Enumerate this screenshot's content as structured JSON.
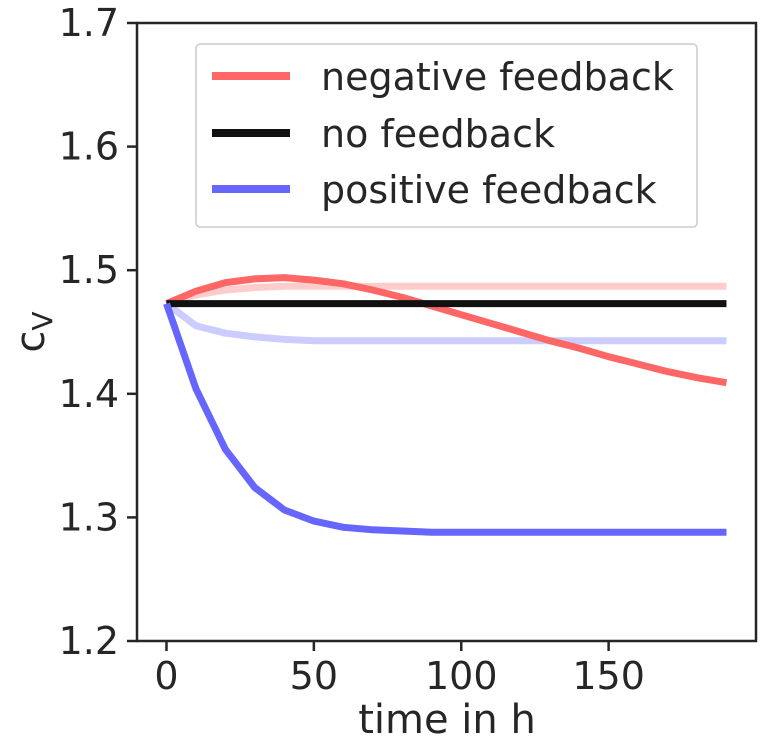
{
  "chart_data": {
    "type": "line",
    "title": "",
    "xlabel": "time in h",
    "ylabel_main": "c",
    "ylabel_sub": "V",
    "xlim": [
      -10,
      200
    ],
    "ylim": [
      1.2,
      1.7
    ],
    "xticks": [
      0,
      50,
      100,
      150
    ],
    "yticks": [
      1.2,
      1.3,
      1.4,
      1.5,
      1.6,
      1.7
    ],
    "xtick_labels": [
      "0",
      "50",
      "100",
      "150"
    ],
    "ytick_labels": [
      "1.2",
      "1.3",
      "1.4",
      "1.5",
      "1.6",
      "1.7"
    ],
    "grid": false,
    "legend_position": "top-right",
    "legend_entries": [
      "negative feedback",
      "no feedback",
      "positive feedback"
    ],
    "series": [
      {
        "name": "negative feedback",
        "color": "#ff6666",
        "x": [
          0,
          10,
          20,
          30,
          40,
          50,
          60,
          70,
          80,
          90,
          100,
          110,
          120,
          130,
          140,
          150,
          160,
          170,
          180,
          190
        ],
        "y": [
          1.473,
          1.483,
          1.49,
          1.493,
          1.494,
          1.492,
          1.489,
          1.484,
          1.478,
          1.471,
          1.464,
          1.457,
          1.45,
          1.443,
          1.437,
          1.43,
          1.424,
          1.418,
          1.413,
          1.409
        ]
      },
      {
        "name": "no feedback",
        "color": "#111111",
        "x": [
          0,
          190
        ],
        "y": [
          1.473,
          1.473
        ]
      },
      {
        "name": "positive feedback",
        "color": "#6666ff",
        "x": [
          0,
          10,
          20,
          30,
          40,
          50,
          60,
          70,
          80,
          90,
          100,
          120,
          150,
          190
        ],
        "y": [
          1.473,
          1.404,
          1.355,
          1.324,
          1.306,
          1.297,
          1.292,
          1.29,
          1.289,
          1.288,
          1.288,
          1.288,
          1.288,
          1.288
        ]
      },
      {
        "color": "#ffcccc",
        "x": [
          0,
          10,
          20,
          30,
          40,
          50,
          60,
          80,
          100,
          150,
          190
        ],
        "y": [
          1.473,
          1.48,
          1.484,
          1.486,
          1.487,
          1.487,
          1.487,
          1.487,
          1.487,
          1.487,
          1.487
        ]
      },
      {
        "color": "#ccccff",
        "x": [
          0,
          10,
          20,
          30,
          40,
          50,
          60,
          80,
          100,
          150,
          190
        ],
        "y": [
          1.473,
          1.455,
          1.449,
          1.446,
          1.444,
          1.443,
          1.443,
          1.443,
          1.443,
          1.443,
          1.443
        ]
      }
    ]
  }
}
